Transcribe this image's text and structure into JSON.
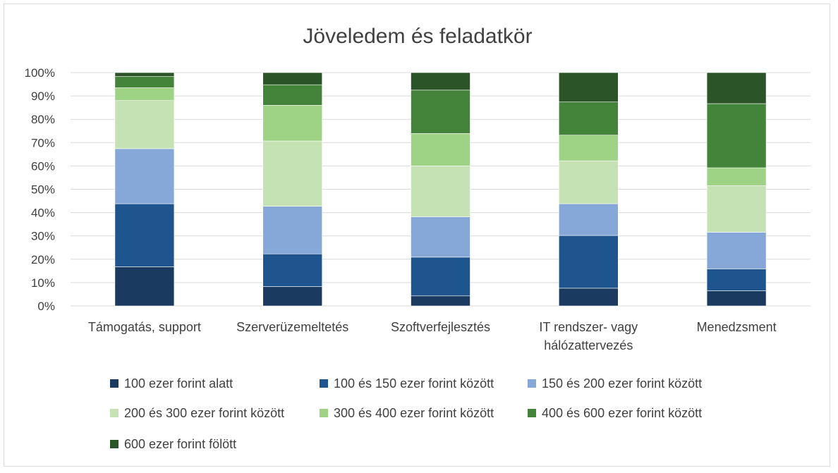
{
  "chart_data": {
    "type": "bar",
    "stacked": true,
    "percent_stacked": true,
    "title": "Jöveledem és feladatkör",
    "xlabel": "",
    "ylabel": "",
    "ylim": [
      0,
      100
    ],
    "yticks": [
      "0%",
      "10%",
      "20%",
      "30%",
      "40%",
      "50%",
      "60%",
      "70%",
      "80%",
      "90%",
      "100%"
    ],
    "grid": true,
    "legend_position": "bottom",
    "categories": [
      [
        "Támogatás, support"
      ],
      [
        "Szerverüzemeltetés"
      ],
      [
        "Szoftverfejlesztés"
      ],
      [
        "IT rendszer- vagy",
        "hálózattervezés"
      ],
      [
        "Menedzsment"
      ]
    ],
    "series": [
      {
        "name": "100 ezer forint alatt",
        "color": "#1a3a60",
        "values": [
          16.8,
          8.3,
          4.3,
          7.6,
          6.5
        ]
      },
      {
        "name": "100 és 150 ezer forint között",
        "color": "#1f558f",
        "values": [
          27.0,
          14.0,
          16.6,
          22.6,
          9.4
        ]
      },
      {
        "name": "150 és 200 ezer forint között",
        "color": "#86a8d8",
        "values": [
          23.6,
          20.4,
          17.3,
          13.6,
          15.7
        ]
      },
      {
        "name": "200 és 300 ezer forint között",
        "color": "#c5e2b4",
        "values": [
          20.6,
          28.0,
          21.8,
          18.4,
          19.9
        ]
      },
      {
        "name": "300 és 400 ezer forint között",
        "color": "#9ed285",
        "values": [
          5.5,
          15.3,
          13.9,
          11.0,
          7.7
        ]
      },
      {
        "name": "400 és 600 ezer forint között",
        "color": "#44843a",
        "values": [
          4.8,
          8.8,
          18.6,
          14.2,
          27.5
        ]
      },
      {
        "name": "600 ezer forint fölött",
        "color": "#2b5529",
        "values": [
          1.7,
          5.2,
          7.5,
          12.6,
          13.3
        ]
      }
    ]
  }
}
